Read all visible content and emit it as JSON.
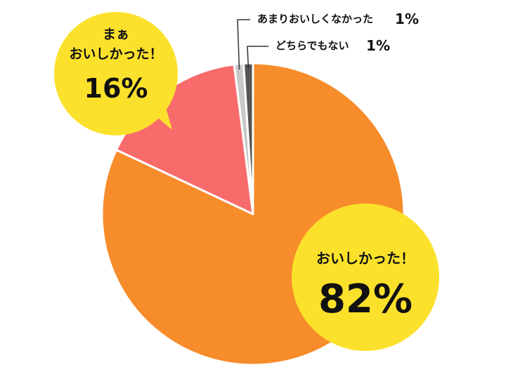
{
  "chart_data": {
    "type": "pie",
    "start_angle_deg": 0,
    "direction": "clockwise",
    "slices": [
      {
        "label": "おいしかった！",
        "value": 82,
        "value_text": "82%",
        "color": "#F78C2A",
        "label_style": "bubble"
      },
      {
        "label": "まぁ\nおいしかった！",
        "value": 16,
        "value_text": "16%",
        "color": "#F86B6B",
        "label_style": "bubble"
      },
      {
        "label": "あまりおいしくなかった",
        "value": 1,
        "value_text": "1%",
        "color": "#C9C9C9",
        "label_style": "leader"
      },
      {
        "label": "どちらでもない",
        "value": 1,
        "value_text": "1%",
        "color": "#555555",
        "label_style": "leader"
      }
    ],
    "title": "",
    "legend": "none"
  },
  "colors": {
    "bubble_fill": "#FBE12B",
    "slice_border": "#FFFFFF",
    "text": "#111111",
    "leader_line": "#333333"
  }
}
